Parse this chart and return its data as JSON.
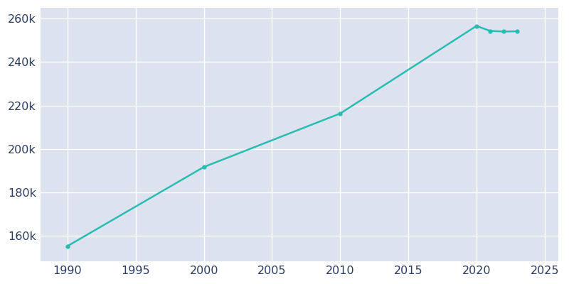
{
  "years": [
    1990,
    2000,
    2010,
    2020,
    2021,
    2022,
    2023
  ],
  "population": [
    155142,
    191615,
    216290,
    256684,
    254378,
    254100,
    254200
  ],
  "line_color": "#2abcb4",
  "marker": "o",
  "marker_size": 3.5,
  "background_color": "#dde3ee",
  "figure_background": "#ffffff",
  "grid_color": "#ffffff",
  "xlim": [
    1988,
    2026
  ],
  "ylim": [
    148000,
    265000
  ],
  "xticks": [
    1990,
    1995,
    2000,
    2005,
    2010,
    2015,
    2020,
    2025
  ],
  "yticks": [
    160000,
    180000,
    200000,
    220000,
    240000,
    260000
  ],
  "tick_color": "#2d3b5e",
  "tick_fontsize": 11.5
}
